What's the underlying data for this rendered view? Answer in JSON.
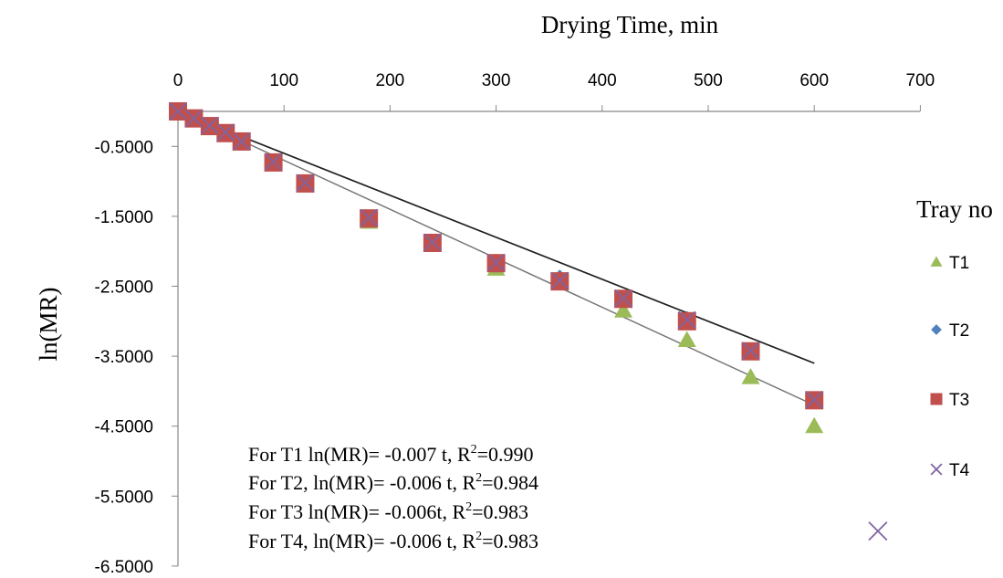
{
  "chart_data": {
    "type": "scatter",
    "xlabel": "Drying Time, min",
    "ylabel": "ln(MR)",
    "xlim": [
      0,
      700
    ],
    "ylim": [
      -6.5,
      0
    ],
    "xticks": [
      0,
      100,
      200,
      300,
      400,
      500,
      600,
      700
    ],
    "yticks": [
      -0.5,
      -1.5,
      -2.5,
      -3.5,
      -4.5,
      -5.5,
      -6.5
    ],
    "ytick_labels": [
      "-0.5000",
      "-1.5000",
      "-2.5000",
      "-3.5000",
      "-4.5000",
      "-5.5000",
      "-6.5000"
    ],
    "x_axis_position": "top",
    "grid": false,
    "legend": {
      "title": "Tray no",
      "position": "right"
    },
    "series": [
      {
        "name": "T1",
        "marker": "triangle",
        "color": "#9BBB59",
        "x": [
          0,
          15,
          30,
          45,
          60,
          90,
          120,
          180,
          240,
          300,
          360,
          420,
          480,
          540,
          600
        ],
        "y": [
          0,
          -0.12,
          -0.22,
          -0.33,
          -0.45,
          -0.75,
          -1.05,
          -1.58,
          -1.9,
          -2.25,
          -2.45,
          -2.85,
          -3.27,
          -3.8,
          -4.5
        ]
      },
      {
        "name": "T2",
        "marker": "diamond",
        "color": "#4F81BD",
        "x": [
          0,
          15,
          30,
          45,
          60,
          90,
          120,
          180,
          240,
          300,
          360,
          420,
          480,
          540,
          600
        ],
        "y": [
          0,
          -0.1,
          -0.2,
          -0.3,
          -0.43,
          -0.72,
          -1.02,
          -1.53,
          -1.87,
          -2.15,
          -2.38,
          -2.67,
          -2.97,
          -3.42,
          -4.12
        ]
      },
      {
        "name": "T3",
        "marker": "square",
        "color": "#C0504D",
        "x": [
          0,
          15,
          30,
          45,
          60,
          90,
          120,
          180,
          240,
          300,
          360,
          420,
          480,
          540,
          600
        ],
        "y": [
          0,
          -0.1,
          -0.21,
          -0.31,
          -0.43,
          -0.73,
          -1.03,
          -1.53,
          -1.88,
          -2.17,
          -2.43,
          -2.68,
          -3.0,
          -3.43,
          -4.13
        ]
      },
      {
        "name": "T4",
        "marker": "x",
        "color": "#8064A2",
        "x": [
          0,
          15,
          30,
          45,
          60,
          90,
          120,
          180,
          240,
          300,
          360,
          420,
          480,
          540,
          600
        ],
        "y": [
          0,
          -0.1,
          -0.2,
          -0.3,
          -0.43,
          -0.72,
          -1.02,
          -1.52,
          -1.87,
          -2.16,
          -2.42,
          -2.67,
          -2.98,
          -3.42,
          -4.12
        ]
      }
    ],
    "trendlines": [
      {
        "series": "T1",
        "slope": -0.007,
        "color": "#777777"
      },
      {
        "series": "T2",
        "slope": -0.006,
        "color": "#333333"
      },
      {
        "series": "T3",
        "slope": -0.006,
        "color": "#555555"
      },
      {
        "series": "T4",
        "slope": -0.006,
        "color": "#222222"
      }
    ],
    "stray_marker": {
      "marker": "x",
      "color": "#8064A2",
      "x": 660,
      "y": -6.0
    },
    "annotations": [
      {
        "prefix": "For T1 ln(MR)= -0.007 t,  R",
        "sup": "2",
        "suffix": "=0.990"
      },
      {
        "prefix": "For T2, ln(MR)= -0.006 t, R",
        "sup": "2",
        "suffix": "=0.984"
      },
      {
        "prefix": "For T3 ln(MR)= -0.006t,   R",
        "sup": "2",
        "suffix": "=0.983"
      },
      {
        "prefix": "For T4, ln(MR)= -0.006 t, R",
        "sup": "2",
        "suffix": "=0.983"
      }
    ]
  }
}
